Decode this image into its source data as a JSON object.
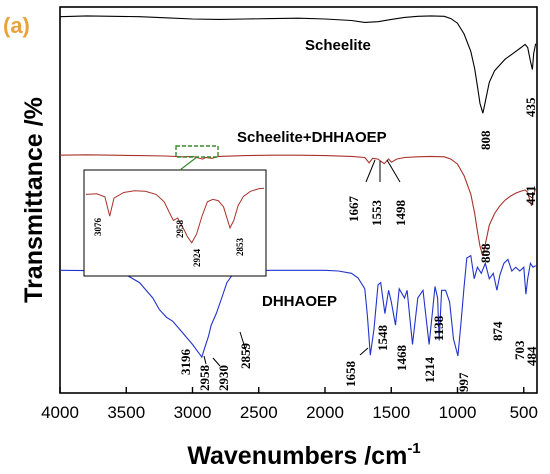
{
  "panel_label": "(a)",
  "chart_data": {
    "type": "line",
    "xlabel": "Wavenumbers /cm",
    "xlabel_sup": "-1",
    "ylabel": "Transmittance /%",
    "xlim": [
      4000,
      400
    ],
    "x_reversed": true,
    "x_ticks": [
      "4000",
      "3500",
      "3000",
      "2500",
      "2000",
      "1500",
      "1000",
      "500"
    ],
    "grid": false,
    "legend": "none",
    "series": [
      {
        "name": "Scheelite",
        "color": "#000000",
        "x": [
          4000,
          3800,
          3600,
          3400,
          3200,
          3000,
          2800,
          2600,
          2400,
          2200,
          2000,
          1800,
          1700,
          1600,
          1500,
          1400,
          1300,
          1200,
          1100,
          1050,
          1000,
          950,
          900,
          870,
          850,
          830,
          808,
          790,
          760,
          720,
          680,
          640,
          600,
          560,
          520,
          490,
          470,
          450,
          435,
          425,
          410
        ],
        "y": [
          97.5,
          97.7,
          97.6,
          97.5,
          97.2,
          96.9,
          96.8,
          96.9,
          97.0,
          97.1,
          96.9,
          96.5,
          96.0,
          96.2,
          96.8,
          97.3,
          97.6,
          97.7,
          97.6,
          97.0,
          95.8,
          93.0,
          88.5,
          84.0,
          79.5,
          75.0,
          72.5,
          75.5,
          80.5,
          83.5,
          85.0,
          86.5,
          87.5,
          88.5,
          89.5,
          90.3,
          89.5,
          86.0,
          83.8,
          88.0,
          90.5
        ]
      },
      {
        "name": "Scheelite+DHHAOEP",
        "color": "#a8322a",
        "x": [
          4000,
          3800,
          3600,
          3400,
          3200,
          3076,
          3000,
          2958,
          2924,
          2900,
          2853,
          2800,
          2600,
          2400,
          2200,
          2000,
          1800,
          1700,
          1667,
          1640,
          1600,
          1553,
          1520,
          1498,
          1460,
          1400,
          1300,
          1200,
          1100,
          1050,
          1000,
          950,
          900,
          870,
          850,
          830,
          808,
          790,
          760,
          720,
          680,
          640,
          600,
          560,
          520,
          490,
          470,
          455,
          441,
          430,
          410
        ],
        "y": [
          61.6,
          61.7,
          61.6,
          61.5,
          61.4,
          61.2,
          61.3,
          60.9,
          60.6,
          61.0,
          60.8,
          61.3,
          61.5,
          61.6,
          61.6,
          61.5,
          61.3,
          61.0,
          59.6,
          60.8,
          60.6,
          59.4,
          60.6,
          59.8,
          60.6,
          61.0,
          61.2,
          61.3,
          61.2,
          60.6,
          59.3,
          56.3,
          51.5,
          46.5,
          42.0,
          38.0,
          35.5,
          38.5,
          43.5,
          46.5,
          48.5,
          50.0,
          51.0,
          51.8,
          52.3,
          52.6,
          52.0,
          50.0,
          48.5,
          51.0,
          53.0
        ]
      },
      {
        "name": "DHHAOEP",
        "color": "#2233cc",
        "x": [
          4000,
          3800,
          3600,
          3500,
          3400,
          3300,
          3250,
          3196,
          3150,
          3100,
          3050,
          3000,
          2958,
          2940,
          2930,
          2900,
          2880,
          2859,
          2820,
          2780,
          2740,
          2700,
          2650,
          2600,
          2400,
          2200,
          2000,
          1900,
          1800,
          1750,
          1700,
          1680,
          1658,
          1630,
          1600,
          1580,
          1548,
          1520,
          1500,
          1468,
          1440,
          1400,
          1380,
          1340,
          1300,
          1260,
          1214,
          1190,
          1170,
          1150,
          1138,
          1120,
          1090,
          1060,
          1030,
          997,
          975,
          950,
          930,
          900,
          874,
          850,
          820,
          790,
          760,
          730,
          703,
          680,
          650,
          620,
          590,
          560,
          530,
          500,
          484,
          470,
          450,
          430,
          410
        ],
        "y": [
          31.8,
          31.7,
          31.4,
          30.6,
          28.6,
          24.6,
          21.6,
          19.6,
          18.6,
          16.6,
          14.6,
          12.6,
          10.6,
          9.8,
          9.3,
          12.6,
          14.6,
          17.6,
          20.6,
          24.6,
          28.6,
          30.6,
          31.4,
          31.7,
          31.8,
          31.8,
          31.8,
          31.6,
          31.0,
          29.8,
          27.0,
          20.0,
          9.8,
          16.6,
          28.0,
          28.6,
          20.6,
          26.6,
          23.6,
          17.6,
          27.0,
          24.6,
          26.6,
          12.6,
          24.6,
          26.6,
          12.6,
          20.6,
          27.6,
          24.6,
          13.6,
          26.6,
          26.6,
          23.6,
          14.0,
          9.6,
          17.6,
          27.6,
          35.0,
          35.6,
          29.6,
          32.6,
          31.0,
          33.6,
          29.6,
          31.0,
          26.6,
          30.6,
          33.6,
          34.6,
          31.6,
          32.6,
          31.6,
          32.6,
          25.6,
          29.6,
          33.6,
          32.6,
          33.0
        ]
      }
    ],
    "inset": {
      "xlim": [
        3120,
        2790
      ],
      "series": "Scheelite+DHHAOEP",
      "x": [
        3120,
        3100,
        3085,
        3076,
        3068,
        3050,
        3030,
        3010,
        2990,
        2975,
        2965,
        2958,
        2950,
        2940,
        2932,
        2924,
        2915,
        2905,
        2895,
        2885,
        2875,
        2865,
        2858,
        2853,
        2846,
        2838,
        2828,
        2815,
        2800,
        2790
      ],
      "y": [
        0.8,
        0.81,
        0.76,
        0.45,
        0.74,
        0.83,
        0.86,
        0.85,
        0.8,
        0.68,
        0.5,
        0.38,
        0.42,
        0.26,
        0.12,
        0.02,
        0.16,
        0.45,
        0.68,
        0.72,
        0.7,
        0.6,
        0.4,
        0.26,
        0.38,
        0.62,
        0.77,
        0.85,
        0.89,
        0.9
      ]
    },
    "annotations": {
      "series_labels": [
        "Scheelite",
        "Scheelite+DHHAOEP",
        "DHHAOEP"
      ],
      "peaks_scheelite": [
        "808",
        "435"
      ],
      "peaks_combined": [
        "1667",
        "1553",
        "1498",
        "808",
        "441"
      ],
      "peaks_inset": [
        "3076",
        "2958",
        "2924",
        "2853"
      ],
      "peaks_dhhaoep": [
        "3196",
        "2958",
        "2930",
        "2859",
        "1658",
        "1548",
        "1468",
        "1214",
        "1138",
        "997",
        "874",
        "703",
        "484"
      ]
    }
  }
}
